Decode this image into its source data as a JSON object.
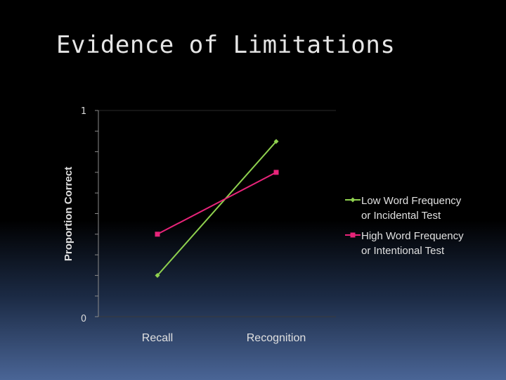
{
  "slide": {
    "title": "Evidence of Limitations"
  },
  "chart_data": {
    "type": "line",
    "title": "",
    "xlabel": "",
    "ylabel": "Proportion Correct",
    "categories": [
      "Recall",
      "Recognition"
    ],
    "ylim": [
      0,
      1
    ],
    "ytick_labels": [
      "0",
      "1"
    ],
    "grid": false,
    "legend_position": "right",
    "series": [
      {
        "name_lines": [
          "Low Word Frequency",
          "or Incidental Test"
        ],
        "values": [
          0.2,
          0.85
        ],
        "color": "#8fd14f",
        "marker": "diamond"
      },
      {
        "name_lines": [
          "High Word Frequency",
          "or Intentional Test"
        ],
        "values": [
          0.4,
          0.7
        ],
        "color": "#e8247a",
        "marker": "square"
      }
    ]
  }
}
